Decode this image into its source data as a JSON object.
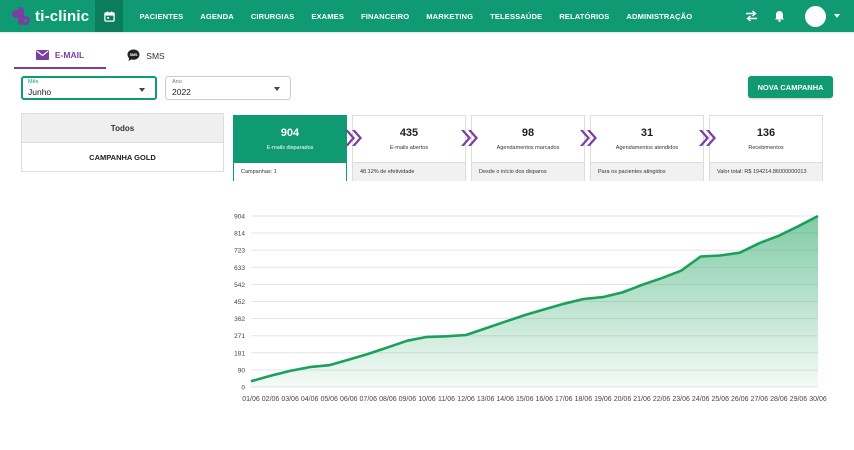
{
  "app": {
    "name": "ti-clinic"
  },
  "nav": {
    "items": [
      "PACIENTES",
      "AGENDA",
      "CIRURGIAS",
      "EXAMES",
      "FINANCEIRO",
      "MARKETING",
      "TELESSAÚDE",
      "RELATÓRIOS",
      "ADMINISTRAÇÃO"
    ],
    "icons": {
      "calendar": "calendar-icon",
      "swap": "swap-arrows-icon",
      "bell": "bell-icon",
      "avatar": "avatar"
    }
  },
  "tabs": {
    "email": "E-MAIL",
    "sms": "SMS"
  },
  "filters": {
    "month_label": "Mês",
    "month_value": "Junho",
    "year_label": "Ano",
    "year_value": "2022"
  },
  "new_campaign_label": "NOVA CAMPANHA",
  "campaigns": {
    "header": "Todos",
    "items": [
      "CAMPANHA GOLD"
    ]
  },
  "funnel": [
    {
      "value": "904",
      "label": "E-mails disparados",
      "footer": "Campanhas: 1"
    },
    {
      "value": "435",
      "label": "E-mails abertos",
      "footer": "48.12% de efetividade"
    },
    {
      "value": "98",
      "label": "Agendamentos marcados",
      "footer": "Desde o início dos disparos"
    },
    {
      "value": "31",
      "label": "Agendamentos atendidos",
      "footer": "Para os pacientes atingidos"
    },
    {
      "value": "136",
      "label": "Recebimentos",
      "footer": "Valor total: R$ 194214.86000000013"
    }
  ],
  "colors": {
    "primary": "#0f9a74",
    "accent": "#7b3fa3",
    "line": "#1aa05b"
  },
  "chart_data": {
    "type": "area",
    "x": [
      "01/06",
      "02/06",
      "03/06",
      "04/06",
      "05/06",
      "06/06",
      "07/06",
      "08/06",
      "09/06",
      "10/06",
      "11/06",
      "12/06",
      "13/06",
      "14/06",
      "15/06",
      "16/06",
      "17/06",
      "18/06",
      "19/06",
      "20/06",
      "21/06",
      "22/06",
      "23/06",
      "24/06",
      "25/06",
      "26/06",
      "27/06",
      "28/06",
      "29/06",
      "30/06"
    ],
    "values": [
      30,
      60,
      85,
      105,
      115,
      145,
      175,
      210,
      245,
      265,
      268,
      275,
      310,
      345,
      380,
      410,
      440,
      465,
      475,
      500,
      540,
      575,
      615,
      690,
      695,
      710,
      760,
      800,
      850,
      904
    ],
    "yticks": [
      0,
      90,
      181,
      271,
      362,
      452,
      542,
      633,
      723,
      814,
      904
    ],
    "ylim": [
      0,
      904
    ],
    "grid": true,
    "legend": "none"
  }
}
